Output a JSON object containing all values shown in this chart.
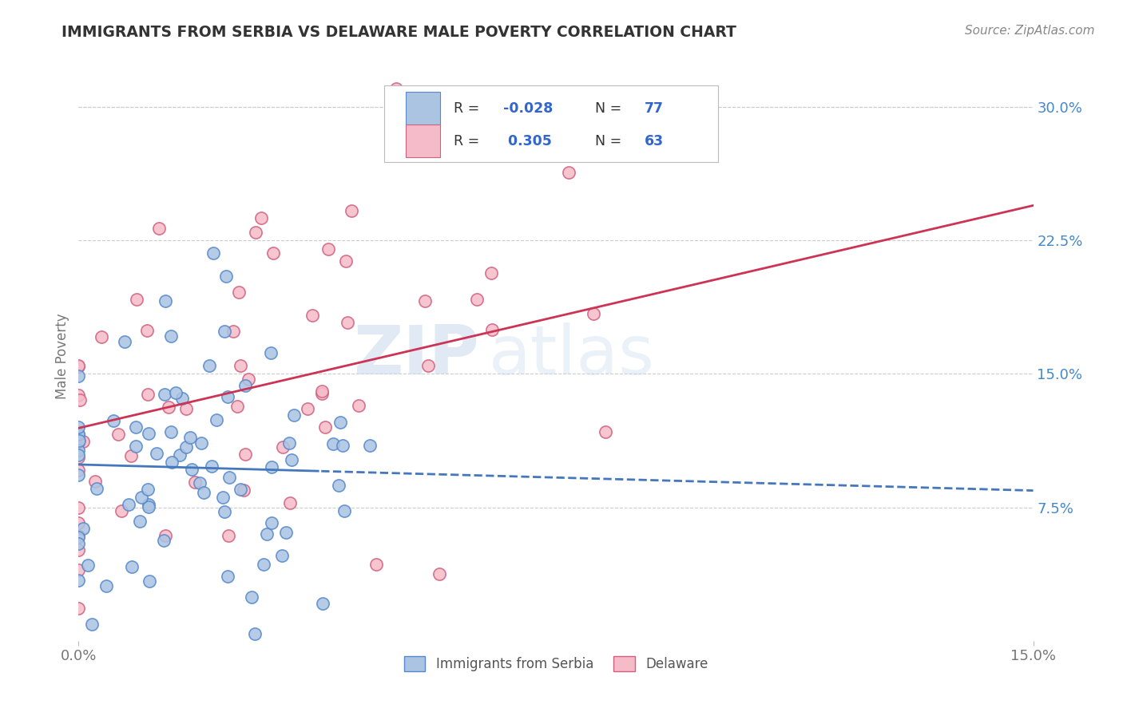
{
  "title": "IMMIGRANTS FROM SERBIA VS DELAWARE MALE POVERTY CORRELATION CHART",
  "source": "Source: ZipAtlas.com",
  "ylabel": "Male Poverty",
  "xlim": [
    0.0,
    0.15
  ],
  "ylim": [
    0.0,
    0.32
  ],
  "xtick_labels": [
    "0.0%",
    "15.0%"
  ],
  "yticks_right": [
    0.075,
    0.15,
    0.225,
    0.3
  ],
  "ytick_labels_right": [
    "7.5%",
    "15.0%",
    "22.5%",
    "30.0%"
  ],
  "series1_color": "#aac4e2",
  "series1_edge": "#5588cc",
  "series2_color": "#f5bbc8",
  "series2_edge": "#d06080",
  "line1_color": "#4477bb",
  "line2_color": "#cc3355",
  "legend_label1": "Immigrants from Serbia",
  "legend_label2": "Delaware",
  "r1": -0.028,
  "n1": 77,
  "r2": 0.305,
  "n2": 63,
  "watermark_zip": "ZIP",
  "watermark_atlas": "atlas",
  "background_color": "#ffffff",
  "grid_color": "#cccccc",
  "title_color": "#333333",
  "source_color": "#888888",
  "legend_text_color": "#333333",
  "legend_value_color": "#3366cc",
  "tick_color": "#777777"
}
